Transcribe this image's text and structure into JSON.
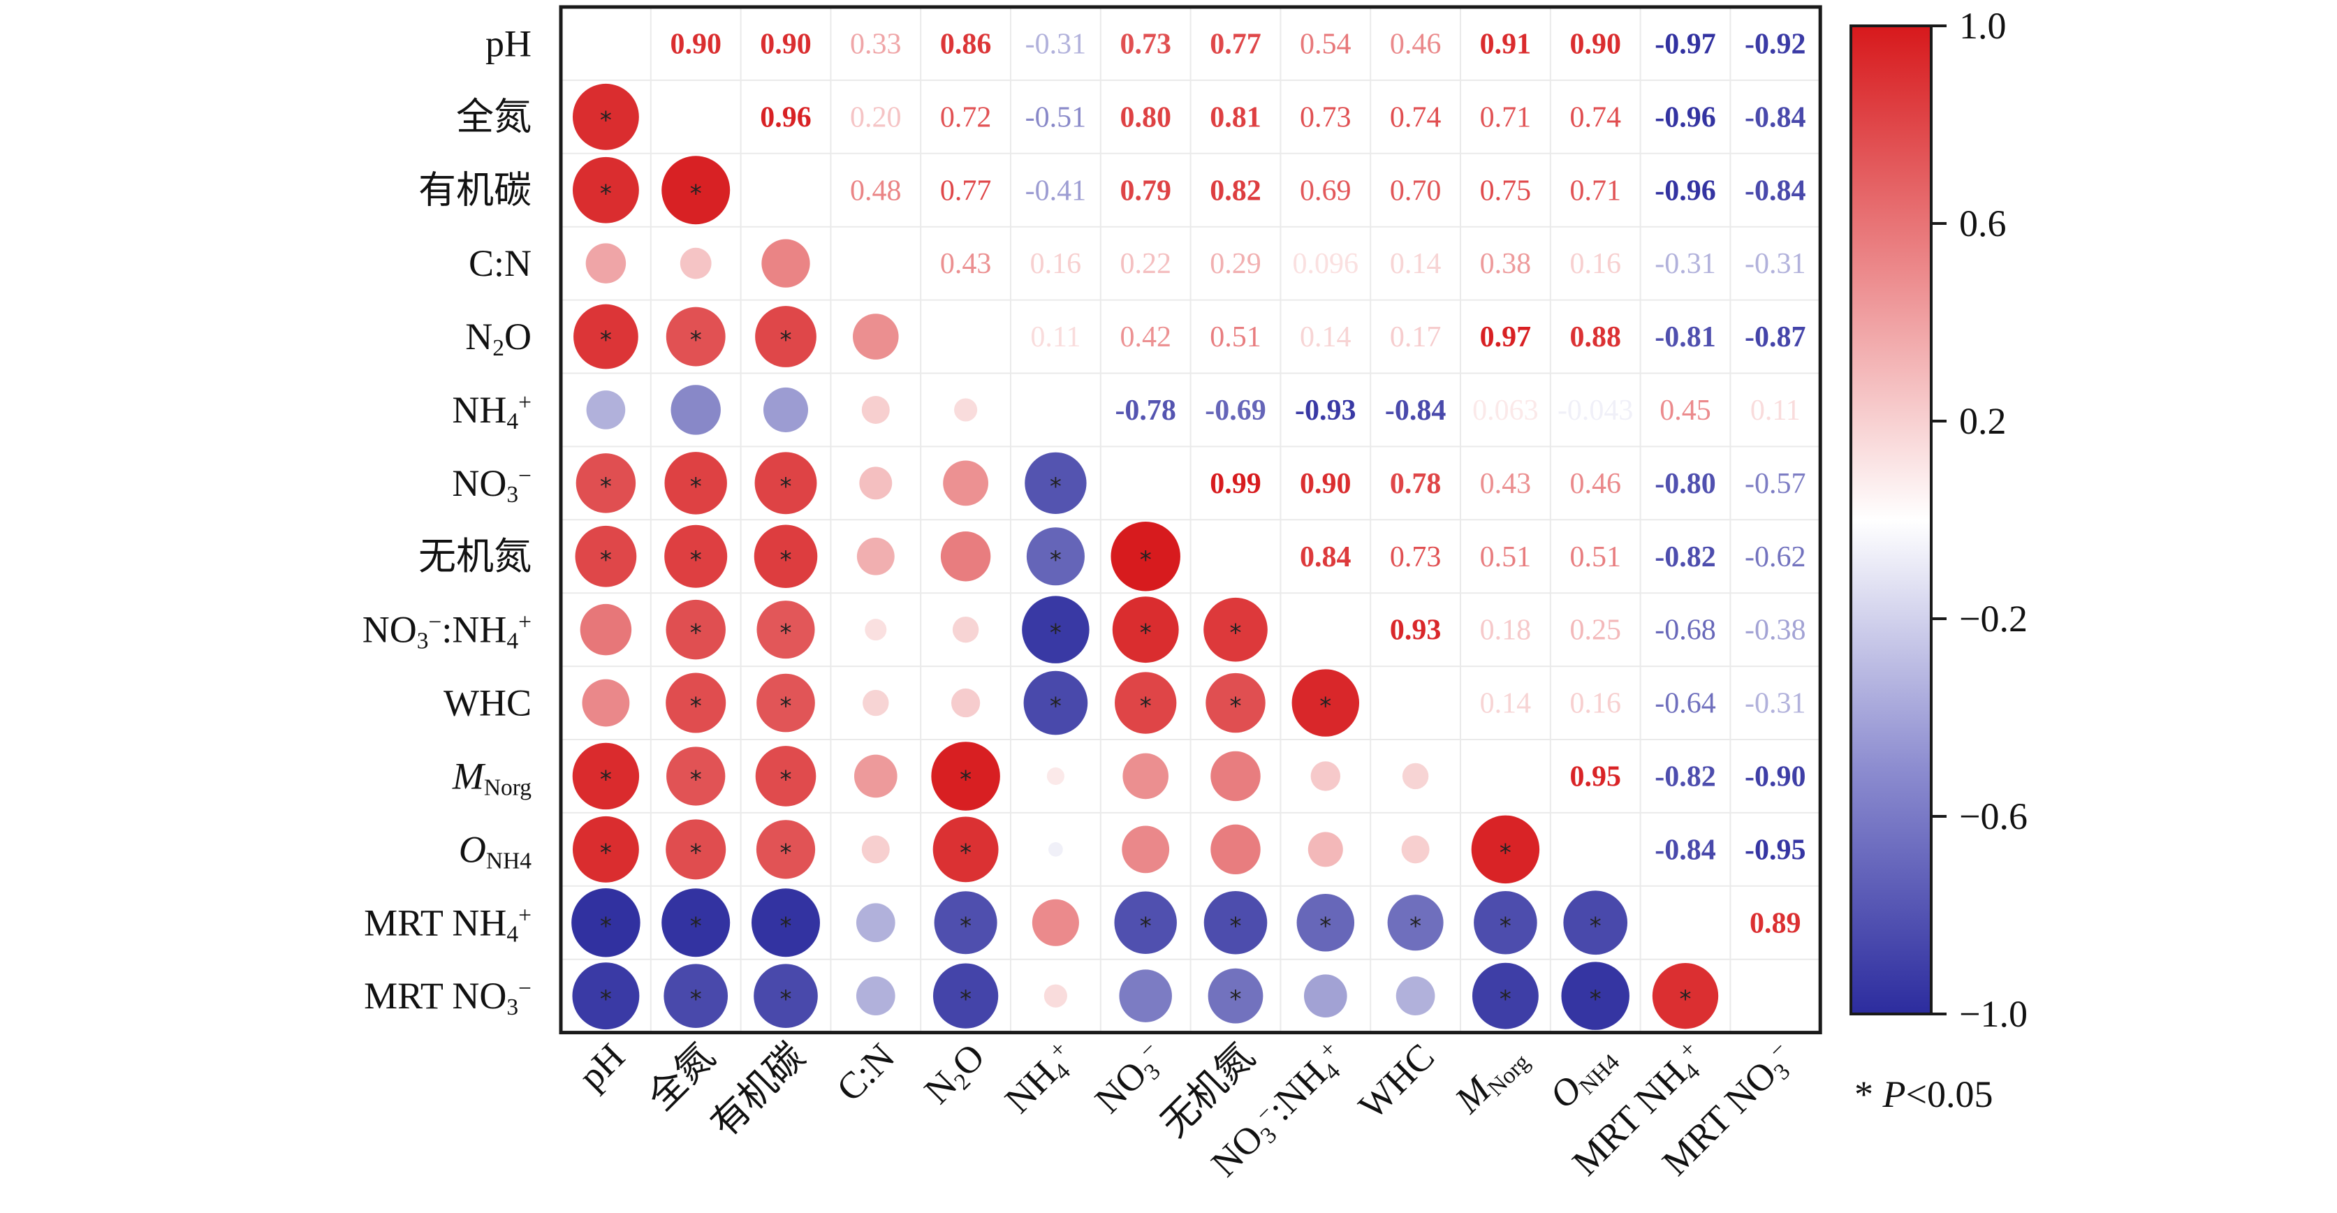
{
  "chart_data": {
    "type": "heatmap",
    "title": "",
    "variables": [
      "pH",
      "全氮",
      "有机碳",
      "C:N",
      "N2O",
      "NH4+",
      "NO3−",
      "无机氮",
      "NO3−:NH4+",
      "WHC",
      "MNorg",
      "ONH4",
      "MRT NH4+",
      "MRT NO3−"
    ],
    "variable_labels_rich": [
      [
        {
          "t": "pH"
        }
      ],
      [
        {
          "t": "全氮"
        }
      ],
      [
        {
          "t": "有机碳"
        }
      ],
      [
        {
          "t": "C:N"
        }
      ],
      [
        {
          "t": "N"
        },
        {
          "t": "2",
          "sub": true
        },
        {
          "t": "O"
        }
      ],
      [
        {
          "t": "NH"
        },
        {
          "t": "4",
          "sub": true
        },
        {
          "t": "+",
          "sup": true
        }
      ],
      [
        {
          "t": "NO"
        },
        {
          "t": "3",
          "sub": true
        },
        {
          "t": "−",
          "sup": true
        }
      ],
      [
        {
          "t": "无机氮"
        }
      ],
      [
        {
          "t": "NO"
        },
        {
          "t": "3",
          "sub": true
        },
        {
          "t": "−",
          "sup": true
        },
        {
          "t": ":NH"
        },
        {
          "t": "4",
          "sub": true
        },
        {
          "t": "+",
          "sup": true
        }
      ],
      [
        {
          "t": "WHC"
        }
      ],
      [
        {
          "t": "M",
          "it": true
        },
        {
          "t": "Norg",
          "sub": true
        }
      ],
      [
        {
          "t": "O",
          "it": true
        },
        {
          "t": "NH4",
          "sub": true
        }
      ],
      [
        {
          "t": "MRT NH"
        },
        {
          "t": "4",
          "sub": true
        },
        {
          "t": "+",
          "sup": true
        }
      ],
      [
        {
          "t": "MRT NO"
        },
        {
          "t": "3",
          "sub": true
        },
        {
          "t": "−",
          "sup": true
        }
      ]
    ],
    "upper_labels": [
      [
        null,
        "0.90",
        "0.90",
        "0.33",
        "0.86",
        "-0.31",
        "0.73",
        "0.77",
        "0.54",
        "0.46",
        "0.91",
        "0.90",
        "-0.97",
        "-0.92"
      ],
      [
        null,
        null,
        "0.96",
        "0.20",
        "0.72",
        "-0.51",
        "0.80",
        "0.81",
        "0.73",
        "0.74",
        "0.71",
        "0.74",
        "-0.96",
        "-0.84"
      ],
      [
        null,
        null,
        null,
        "0.48",
        "0.77",
        "-0.41",
        "0.79",
        "0.82",
        "0.69",
        "0.70",
        "0.75",
        "0.71",
        "-0.96",
        "-0.84"
      ],
      [
        null,
        null,
        null,
        null,
        "0.43",
        "0.16",
        "0.22",
        "0.29",
        "0.096",
        "0.14",
        "0.38",
        "0.16",
        "-0.31",
        "-0.31"
      ],
      [
        null,
        null,
        null,
        null,
        null,
        "0.11",
        "0.42",
        "0.51",
        "0.14",
        "0.17",
        "0.97",
        "0.88",
        "-0.81",
        "-0.87"
      ],
      [
        null,
        null,
        null,
        null,
        null,
        null,
        "-0.78",
        "-0.69",
        "-0.93",
        "-0.84",
        "0.063",
        "-0.043",
        "0.45",
        "0.11"
      ],
      [
        null,
        null,
        null,
        null,
        null,
        null,
        null,
        "0.99",
        "0.90",
        "0.78",
        "0.43",
        "0.46",
        "-0.80",
        "-0.57"
      ],
      [
        null,
        null,
        null,
        null,
        null,
        null,
        null,
        null,
        "0.84",
        "0.73",
        "0.51",
        "0.51",
        "-0.82",
        "-0.62"
      ],
      [
        null,
        null,
        null,
        null,
        null,
        null,
        null,
        null,
        null,
        "0.93",
        "0.18",
        "0.25",
        "-0.68",
        "-0.38"
      ],
      [
        null,
        null,
        null,
        null,
        null,
        null,
        null,
        null,
        null,
        null,
        "0.14",
        "0.16",
        "-0.64",
        "-0.31"
      ],
      [
        null,
        null,
        null,
        null,
        null,
        null,
        null,
        null,
        null,
        null,
        null,
        "0.95",
        "-0.82",
        "-0.90"
      ],
      [
        null,
        null,
        null,
        null,
        null,
        null,
        null,
        null,
        null,
        null,
        null,
        null,
        "-0.84",
        "-0.95"
      ],
      [
        null,
        null,
        null,
        null,
        null,
        null,
        null,
        null,
        null,
        null,
        null,
        null,
        null,
        "0.89"
      ],
      [
        null,
        null,
        null,
        null,
        null,
        null,
        null,
        null,
        null,
        null,
        null,
        null,
        null,
        null
      ]
    ],
    "bold_upper": [
      [
        false,
        true,
        true,
        false,
        true,
        false,
        true,
        true,
        false,
        false,
        true,
        true,
        true,
        true
      ],
      [
        false,
        false,
        true,
        false,
        false,
        false,
        true,
        true,
        false,
        false,
        false,
        false,
        true,
        true
      ],
      [
        false,
        false,
        false,
        false,
        false,
        false,
        true,
        true,
        false,
        false,
        false,
        false,
        true,
        true
      ],
      [
        false,
        false,
        false,
        false,
        false,
        false,
        false,
        false,
        false,
        false,
        false,
        false,
        false,
        false
      ],
      [
        false,
        false,
        false,
        false,
        false,
        false,
        false,
        false,
        false,
        false,
        true,
        true,
        true,
        true
      ],
      [
        false,
        false,
        false,
        false,
        false,
        false,
        true,
        true,
        true,
        true,
        false,
        false,
        false,
        false
      ],
      [
        false,
        false,
        false,
        false,
        false,
        false,
        false,
        true,
        true,
        true,
        false,
        false,
        true,
        false
      ],
      [
        false,
        false,
        false,
        false,
        false,
        false,
        false,
        false,
        true,
        false,
        false,
        false,
        true,
        false
      ],
      [
        false,
        false,
        false,
        false,
        false,
        false,
        false,
        false,
        false,
        true,
        false,
        false,
        false,
        false
      ],
      [
        false,
        false,
        false,
        false,
        false,
        false,
        false,
        false,
        false,
        false,
        false,
        false,
        false,
        false
      ],
      [
        false,
        false,
        false,
        false,
        false,
        false,
        false,
        false,
        false,
        false,
        false,
        true,
        true,
        true
      ],
      [
        false,
        false,
        false,
        false,
        false,
        false,
        false,
        false,
        false,
        false,
        false,
        false,
        true,
        true
      ],
      [
        false,
        false,
        false,
        false,
        false,
        false,
        false,
        false,
        false,
        false,
        false,
        false,
        false,
        true
      ],
      [
        false,
        false,
        false,
        false,
        false,
        false,
        false,
        false,
        false,
        false,
        false,
        false,
        false,
        false
      ]
    ],
    "significance_marker": "*",
    "significance_note": "* P<0.05",
    "colorbar": {
      "range": [
        -1.0,
        1.0
      ],
      "ticks": [
        "1.0",
        "0.6",
        "0.2",
        "−0.2",
        "−0.6",
        "−1.0"
      ],
      "tick_values": [
        1.0,
        0.6,
        0.2,
        -0.2,
        -0.6,
        -1.0
      ]
    },
    "colors": {
      "positive": "#d7191c",
      "negative": "#2c2c9e",
      "neutral": "#ffffff"
    }
  }
}
